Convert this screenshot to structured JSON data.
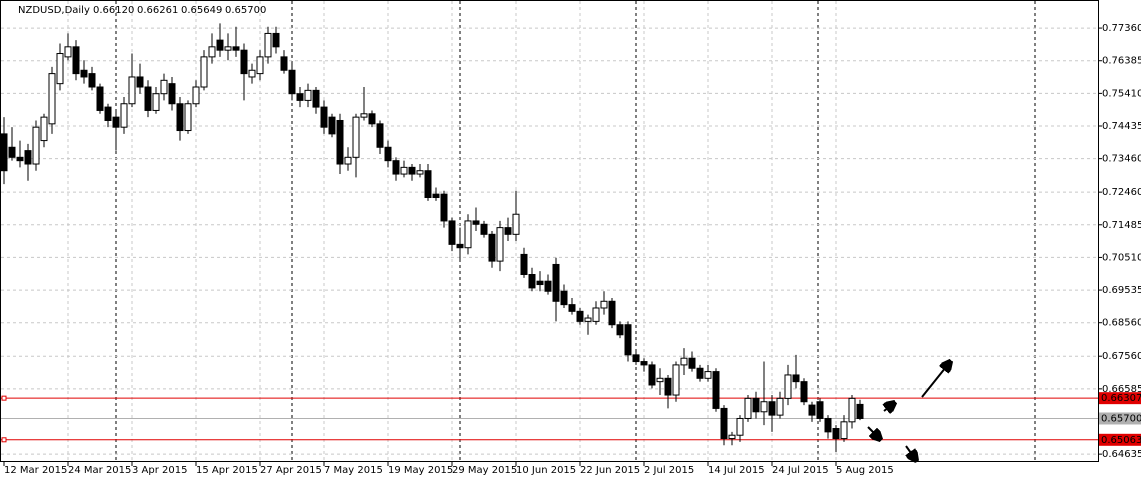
{
  "chart_data": {
    "type": "candlestick",
    "title": "NZDUSD,Daily",
    "header_labels": [
      "0.66120",
      "0.66261",
      "0.65649",
      "0.65700"
    ],
    "categories": [
      "12 Mar 2015",
      null,
      null,
      null,
      null,
      null,
      null,
      null,
      "24 Mar 2015",
      null,
      null,
      null,
      null,
      null,
      null,
      null,
      "3 Apr 2015",
      null,
      null,
      null,
      null,
      null,
      null,
      null,
      "15 Apr 2015",
      null,
      null,
      null,
      null,
      null,
      null,
      null,
      "27 Apr 2015",
      null,
      null,
      null,
      null,
      null,
      null,
      null,
      "7 May 2015",
      null,
      null,
      null,
      null,
      null,
      null,
      null,
      "19 May 2015",
      null,
      null,
      null,
      null,
      null,
      null,
      null,
      "29 May 2015",
      null,
      null,
      null,
      null,
      null,
      null,
      null,
      "10 Jun 2015",
      null,
      null,
      null,
      null,
      null,
      null,
      null,
      "22 Jun 2015",
      null,
      null,
      null,
      null,
      null,
      null,
      null,
      "2 Jul 2015",
      null,
      null,
      null,
      null,
      null,
      null,
      null,
      "14 Jul 2015",
      null,
      null,
      null,
      null,
      null,
      null,
      null,
      "24 Jul 2015",
      null,
      null,
      null,
      null,
      null,
      null,
      null,
      "5 Aug 2015",
      null,
      null,
      null
    ],
    "open": [
      0.742,
      0.738,
      0.735,
      0.737,
      0.733,
      0.74,
      0.745,
      0.757,
      0.765,
      0.768,
      0.761,
      0.76,
      0.756,
      0.75,
      0.747,
      0.744,
      0.751,
      0.759,
      0.756,
      0.749,
      0.754,
      0.757,
      0.751,
      0.743,
      0.751,
      0.756,
      0.765,
      0.77,
      0.767,
      0.768,
      0.767,
      0.759,
      0.76,
      0.765,
      0.772,
      0.765,
      0.761,
      0.754,
      0.752,
      0.755,
      0.75,
      0.747,
      0.746,
      0.733,
      0.735,
      0.747,
      0.748,
      0.745,
      0.738,
      0.734,
      0.73,
      0.732,
      0.73,
      0.731,
      0.724,
      0.724,
      0.716,
      0.709,
      0.708,
      0.716,
      0.715,
      0.712,
      0.704,
      0.714,
      0.712,
      0.706,
      0.7,
      0.698,
      0.698,
      0.703,
      0.695,
      0.691,
      0.689,
      0.686,
      0.686,
      0.69,
      0.692,
      0.685,
      0.685,
      0.676,
      0.674,
      0.673,
      0.668,
      0.669,
      0.664,
      0.673,
      0.675,
      0.672,
      0.669,
      0.671,
      0.66,
      0.651,
      0.652,
      0.657,
      0.663,
      0.659,
      0.662,
      0.658,
      0.663,
      0.67,
      0.668,
      0.661,
      0.662,
      0.657,
      0.654,
      0.651,
      0.656,
      0.6612
    ],
    "high": [
      0.747,
      0.744,
      0.74,
      0.739,
      0.746,
      0.748,
      0.762,
      0.769,
      0.772,
      0.77,
      0.764,
      0.762,
      0.757,
      0.751,
      0.749,
      0.753,
      0.766,
      0.763,
      0.758,
      0.756,
      0.76,
      0.759,
      0.753,
      0.752,
      0.758,
      0.767,
      0.772,
      0.775,
      0.772,
      0.774,
      0.769,
      0.763,
      0.767,
      0.774,
      0.774,
      0.767,
      0.763,
      0.756,
      0.757,
      0.756,
      0.752,
      0.748,
      0.748,
      0.738,
      0.748,
      0.756,
      0.749,
      0.746,
      0.74,
      0.735,
      0.734,
      0.733,
      0.733,
      0.733,
      0.726,
      0.725,
      0.717,
      0.714,
      0.718,
      0.72,
      0.716,
      0.713,
      0.716,
      0.717,
      0.725,
      0.708,
      0.702,
      0.701,
      0.7,
      0.705,
      0.697,
      0.693,
      0.69,
      0.688,
      0.692,
      0.695,
      0.693,
      0.686,
      0.686,
      0.677,
      0.675,
      0.674,
      0.672,
      0.67,
      0.674,
      0.678,
      0.677,
      0.673,
      0.673,
      0.672,
      0.661,
      0.653,
      0.658,
      0.664,
      0.665,
      0.674,
      0.664,
      0.665,
      0.673,
      0.676,
      0.669,
      0.662,
      0.663,
      0.658,
      0.655,
      0.658,
      0.664,
      0.66261
    ],
    "low": [
      0.727,
      0.734,
      0.732,
      0.728,
      0.731,
      0.738,
      0.742,
      0.755,
      0.764,
      0.758,
      0.757,
      0.755,
      0.748,
      0.744,
      0.737,
      0.742,
      0.75,
      0.754,
      0.747,
      0.748,
      0.752,
      0.749,
      0.74,
      0.742,
      0.75,
      0.755,
      0.763,
      0.765,
      0.764,
      0.765,
      0.752,
      0.757,
      0.758,
      0.763,
      0.766,
      0.76,
      0.752,
      0.75,
      0.75,
      0.748,
      0.742,
      0.741,
      0.73,
      0.731,
      0.729,
      0.746,
      0.744,
      0.736,
      0.732,
      0.728,
      0.729,
      0.728,
      0.729,
      0.722,
      0.722,
      0.714,
      0.707,
      0.704,
      0.706,
      0.713,
      0.711,
      0.702,
      0.701,
      0.71,
      0.71,
      0.699,
      0.695,
      0.695,
      0.694,
      0.686,
      0.69,
      0.688,
      0.685,
      0.682,
      0.685,
      0.688,
      0.684,
      0.681,
      0.674,
      0.673,
      0.671,
      0.666,
      0.664,
      0.66,
      0.662,
      0.67,
      0.671,
      0.668,
      0.668,
      0.659,
      0.649,
      0.649,
      0.65,
      0.656,
      0.657,
      0.655,
      0.653,
      0.657,
      0.661,
      0.666,
      0.661,
      0.656,
      0.656,
      0.651,
      0.647,
      0.65,
      0.654,
      0.65649
    ],
    "close": [
      0.731,
      0.735,
      0.734,
      0.733,
      0.744,
      0.747,
      0.76,
      0.766,
      0.768,
      0.76,
      0.759,
      0.756,
      0.749,
      0.746,
      0.744,
      0.751,
      0.759,
      0.756,
      0.749,
      0.754,
      0.758,
      0.751,
      0.743,
      0.751,
      0.756,
      0.765,
      0.768,
      0.767,
      0.768,
      0.767,
      0.76,
      0.761,
      0.765,
      0.772,
      0.768,
      0.761,
      0.754,
      0.752,
      0.755,
      0.75,
      0.744,
      0.742,
      0.733,
      0.735,
      0.747,
      0.748,
      0.745,
      0.738,
      0.734,
      0.73,
      0.732,
      0.73,
      0.731,
      0.723,
      0.723,
      0.716,
      0.709,
      0.708,
      0.716,
      0.715,
      0.712,
      0.704,
      0.714,
      0.712,
      0.718,
      0.7,
      0.696,
      0.697,
      0.695,
      0.692,
      0.691,
      0.689,
      0.686,
      0.687,
      0.69,
      0.692,
      0.685,
      0.682,
      0.676,
      0.674,
      0.673,
      0.667,
      0.669,
      0.664,
      0.673,
      0.675,
      0.672,
      0.669,
      0.671,
      0.66,
      0.651,
      0.652,
      0.657,
      0.663,
      0.659,
      0.662,
      0.658,
      0.663,
      0.67,
      0.668,
      0.662,
      0.658,
      0.657,
      0.653,
      0.651,
      0.656,
      0.663,
      0.657
    ],
    "up_color": "#ffffff",
    "down_color": "#000000",
    "ylim": [
      0.644,
      0.779
    ],
    "yticks": [
      {
        "value": 0.7736,
        "label": "0.77360"
      },
      {
        "value": 0.76385,
        "label": "0.76385"
      },
      {
        "value": 0.7541,
        "label": "0.75410"
      },
      {
        "value": 0.74435,
        "label": "0.74435"
      },
      {
        "value": 0.7346,
        "label": "0.73460"
      },
      {
        "value": 0.7246,
        "label": "0.72460"
      },
      {
        "value": 0.71485,
        "label": "0.71485"
      },
      {
        "value": 0.7051,
        "label": "0.70510"
      },
      {
        "value": 0.69535,
        "label": "0.69535"
      },
      {
        "value": 0.6856,
        "label": "0.68560"
      },
      {
        "value": 0.6756,
        "label": "0.67560"
      },
      {
        "value": 0.66585,
        "label": "0.66585"
      },
      {
        "value": 0.64635,
        "label": "0.64635"
      }
    ],
    "grid": true,
    "hlines": [
      {
        "value": 0.66307,
        "label": "0.66307",
        "color": "#e00000"
      },
      {
        "value": 0.65063,
        "label": "0.65063",
        "color": "#e00000"
      }
    ],
    "bid": {
      "value": 0.657,
      "label": "0.65700",
      "color": "#b0b0b0"
    }
  }
}
